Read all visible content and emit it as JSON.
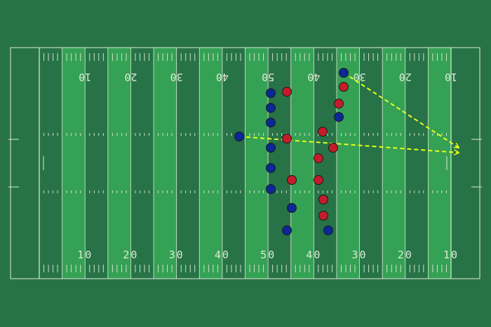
{
  "colors": {
    "background": "#277347",
    "stripe_dark": "#277347",
    "stripe_light": "#35a155",
    "line": "#dcebd5",
    "blue_team": "#0a2896",
    "red_team": "#c41c2a",
    "route": "#e8ff1a",
    "player_outline": "#1a1a1a"
  },
  "field": {
    "numbers_top": [
      "10",
      "20",
      "30",
      "40",
      "50",
      "40",
      "30",
      "20",
      "10"
    ],
    "numbers_bottom": [
      "10",
      "20",
      "30",
      "40",
      "50",
      "40",
      "30",
      "20",
      "10"
    ]
  },
  "play": {
    "blue_players": [
      {
        "id": "qb",
        "role": "quarterback"
      },
      {
        "id": "ol-1",
        "role": "offensive-line"
      },
      {
        "id": "ol-2",
        "role": "offensive-line"
      },
      {
        "id": "ol-3",
        "role": "offensive-line"
      },
      {
        "id": "ol-4",
        "role": "offensive-line"
      },
      {
        "id": "ol-5",
        "role": "offensive-line"
      },
      {
        "id": "ol-6",
        "role": "offensive-line"
      },
      {
        "id": "wr-top",
        "role": "receiver"
      },
      {
        "id": "wr-mid",
        "role": "receiver"
      },
      {
        "id": "rb",
        "role": "back"
      },
      {
        "id": "wr-low",
        "role": "receiver"
      },
      {
        "id": "wr-bottom",
        "role": "receiver"
      }
    ],
    "red_players": [
      {
        "id": "d-1"
      },
      {
        "id": "d-2"
      },
      {
        "id": "d-3"
      },
      {
        "id": "d-4"
      },
      {
        "id": "d-5"
      },
      {
        "id": "d-6"
      },
      {
        "id": "d-7"
      },
      {
        "id": "d-8"
      },
      {
        "id": "d-9"
      },
      {
        "id": "d-10"
      },
      {
        "id": "d-11"
      }
    ],
    "routes": [
      {
        "id": "route-top",
        "from": "wr-top",
        "style": "dashed-arrow"
      },
      {
        "id": "route-qb",
        "from": "qb",
        "style": "dashed-arrow"
      }
    ]
  }
}
